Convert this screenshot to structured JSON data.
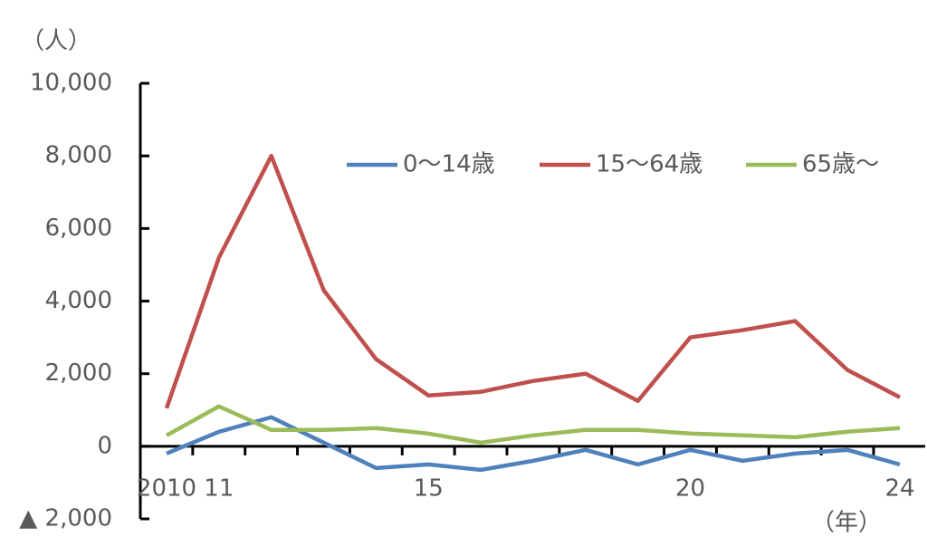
{
  "chart_data": {
    "type": "line",
    "y_unit": "（人）",
    "x_unit": "（年）",
    "categories": [
      "2010",
      "11",
      null,
      null,
      null,
      "15",
      null,
      null,
      null,
      null,
      "20",
      null,
      null,
      null,
      "24"
    ],
    "series": [
      {
        "name": "0～14歳",
        "color": "#4f81bd",
        "values": [
          -200,
          400,
          800,
          100,
          -600,
          -500,
          -650,
          -400,
          -100,
          -500,
          -100,
          -400,
          -200,
          -100,
          -500
        ]
      },
      {
        "name": "15～64歳",
        "color": "#c0504d",
        "values": [
          1050,
          5200,
          8000,
          4300,
          2400,
          1400,
          1500,
          1800,
          2000,
          1250,
          3000,
          3200,
          3450,
          2100,
          1350
        ]
      },
      {
        "name": "65歳～",
        "color": "#9bbb59",
        "values": [
          300,
          1100,
          450,
          450,
          500,
          350,
          100,
          300,
          450,
          450,
          350,
          300,
          250,
          400,
          500
        ]
      }
    ],
    "ylim": [
      -2000,
      10000
    ],
    "yticks": [
      {
        "value": -2000,
        "label": "▲ 2,000"
      },
      0,
      {
        "value": 2000,
        "label": "2,000"
      },
      {
        "value": 4000,
        "label": "4,000"
      },
      {
        "value": 6000,
        "label": "6,000"
      },
      {
        "value": 8000,
        "label": "8,000"
      },
      {
        "value": 10000,
        "label": "10,000"
      }
    ],
    "legend": "top-right",
    "grid": false
  }
}
